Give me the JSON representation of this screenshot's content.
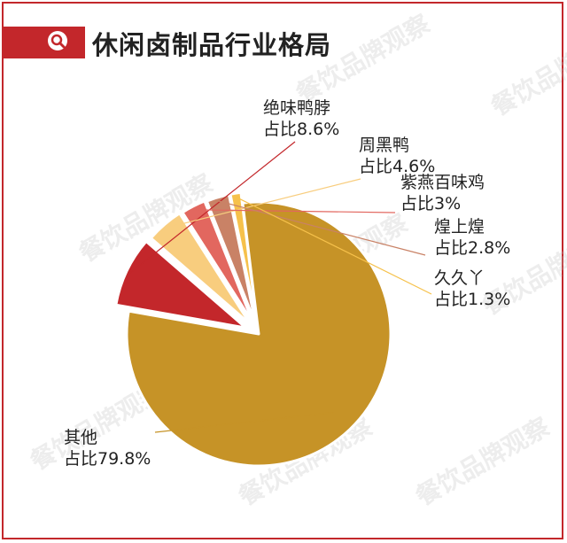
{
  "title": "休闲卤制品行业格局",
  "watermark": "餐饮品牌观察",
  "colors": {
    "accent": "#c3272b",
    "slices": [
      "#c3272b",
      "#f8cd7e",
      "#e2675f",
      "#c98266",
      "#f6c14b",
      "#c69327"
    ]
  },
  "chart_data": {
    "type": "pie",
    "title": "休闲卤制品行业格局",
    "slices": [
      {
        "name": "绝味鸭脖",
        "label": "占比8.6%",
        "value": 8.6
      },
      {
        "name": "周黑鸭",
        "label": "占比4.6%",
        "value": 4.6
      },
      {
        "name": "紫燕百味鸡",
        "label": "占比3%",
        "value": 3.0
      },
      {
        "name": "煌上煌",
        "label": "占比2.8%",
        "value": 2.8
      },
      {
        "name": "久久丫",
        "label": "占比1.3%",
        "value": 1.3
      },
      {
        "name": "其他",
        "label": "占比79.8%",
        "value": 79.8
      }
    ]
  }
}
